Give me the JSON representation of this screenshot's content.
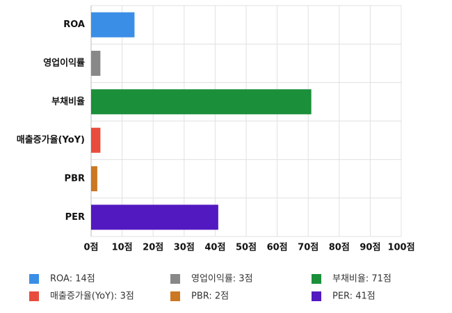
{
  "chart_data": {
    "type": "barh",
    "categories": [
      "ROA",
      "영업이익률",
      "부채비율",
      "매출증가율(YoY)",
      "PBR",
      "PER"
    ],
    "values": [
      14,
      3,
      71,
      3,
      2,
      41
    ],
    "colors": [
      "#3b8ee6",
      "#888888",
      "#1b8f3a",
      "#e84c3d",
      "#cc7722",
      "#5319c0"
    ],
    "legend_labels": [
      "ROA: 14점",
      "영업이익률: 3점",
      "부채비율: 71점",
      "매출증가율(YoY): 3점",
      "PBR: 2점",
      "PER: 41점"
    ],
    "xlim": [
      0,
      100
    ],
    "xticks": [
      {
        "value": 0,
        "label": "0점"
      },
      {
        "value": 10,
        "label": "10점"
      },
      {
        "value": 20,
        "label": "20점"
      },
      {
        "value": 30,
        "label": "30점"
      },
      {
        "value": 40,
        "label": "40점"
      },
      {
        "value": 50,
        "label": "50점"
      },
      {
        "value": 60,
        "label": "60점"
      },
      {
        "value": 70,
        "label": "70점"
      },
      {
        "value": 80,
        "label": "80점"
      },
      {
        "value": 90,
        "label": "90점"
      },
      {
        "value": 100,
        "label": "100점"
      }
    ],
    "grid": true
  }
}
